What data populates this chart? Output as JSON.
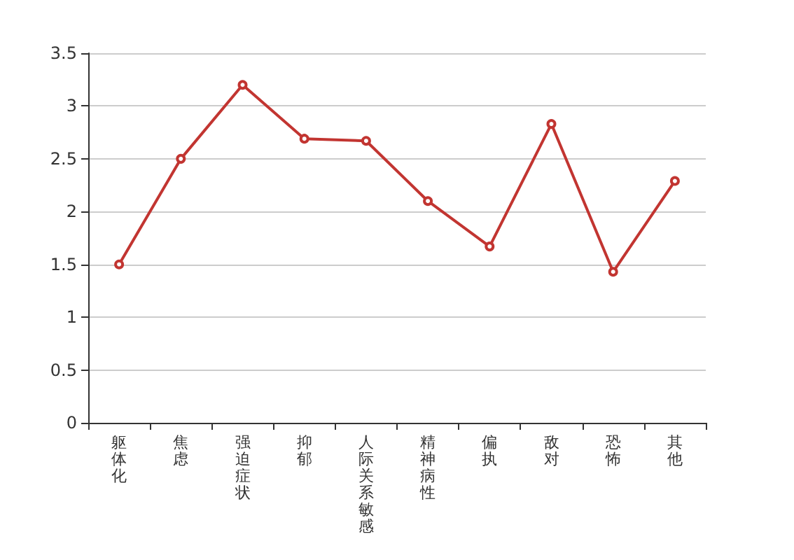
{
  "chart_data": {
    "type": "line",
    "categories": [
      "躯体化",
      "焦虑",
      "强迫症状",
      "抑郁",
      "人际关系敏感",
      "精神病性",
      "偏执",
      "敌对",
      "恐怖",
      "其他"
    ],
    "series": [
      {
        "color": "#c23531",
        "values": [
          1.5,
          2.5,
          3.2,
          2.69,
          2.67,
          2.1,
          1.67,
          2.83,
          1.43,
          2.29
        ]
      }
    ],
    "ylim": [
      0,
      3.5
    ],
    "yticks": [
      0,
      0.5,
      1,
      1.5,
      2,
      2.5,
      3,
      3.5
    ],
    "grid": "y",
    "marker": "circle",
    "line_style": "solid"
  }
}
